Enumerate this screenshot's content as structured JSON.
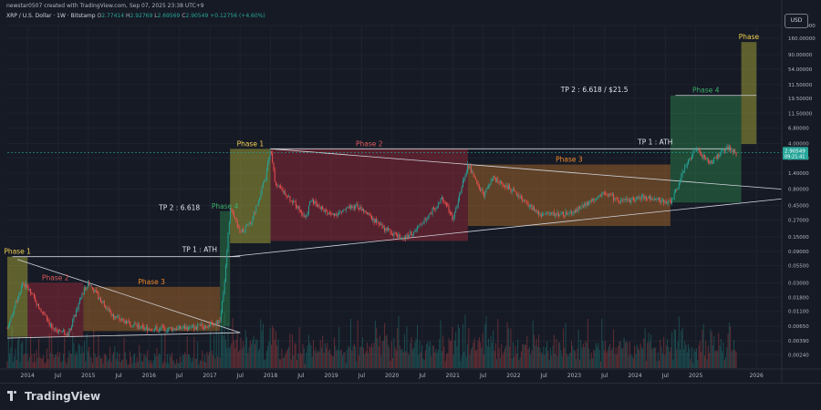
{
  "header": {
    "credit": "newstar0507 created with TradingView.com, Sep 07, 2025 23:38 UTC+9"
  },
  "symbol": {
    "name": "XRP / U.S. Dollar · 1W · Bitstamp",
    "o_label": "O",
    "o_value": "2.77414",
    "h_label": "H",
    "h_value": "2.92769",
    "l_label": "L",
    "l_value": "2.69569",
    "c_label": "C",
    "c_value": "2.90549",
    "change": "+0.12756 (+4.60%)"
  },
  "currency_button": "USD",
  "price_tag": {
    "price": "2.90549",
    "countdown": "09:21:41"
  },
  "logo_text": "TradingView",
  "colors": {
    "background": "#161a25",
    "up": "#26a69a",
    "down": "#ef5350",
    "phase1": "#b5b53a",
    "phase2": "#a52a3a",
    "phase3": "#b8722a",
    "phase4": "#2d8a4e",
    "label_phase1": "#f0d050",
    "label_phase2": "#e05a5a",
    "label_phase3": "#f08a2a",
    "label_phase4": "#3cb06a"
  },
  "chart_data": {
    "type": "candlestick",
    "scale": "log",
    "ylim": [
      0.0015,
      250
    ],
    "y_ticks": [
      "250.00000",
      "160.00000",
      "90.00000",
      "54.00000",
      "31.50000",
      "19.50000",
      "11.50000",
      "6.80000",
      "4.00000",
      "2.40000",
      "1.40000",
      "0.80000",
      "0.45000",
      "0.27000",
      "0.15000",
      "0.09000",
      "0.05500",
      "0.03000",
      "0.01800",
      "0.01100",
      "0.00650",
      "0.00390",
      "0.00240"
    ],
    "x_ticks": [
      "2014",
      "Jul",
      "2015",
      "Jul",
      "2016",
      "Jul",
      "2017",
      "Jul",
      "2018",
      "Jul",
      "2019",
      "Jul",
      "2020",
      "Jul",
      "2021",
      "Jul",
      "2022",
      "Jul",
      "2023",
      "Jul",
      "2024",
      "Jul",
      "2025",
      "Jul",
      "2026"
    ],
    "x_range": [
      "2013-09",
      "2026-06"
    ],
    "price_path": [
      [
        "2013-09",
        0.006
      ],
      [
        "2013-12",
        0.03
      ],
      [
        "2014-01",
        0.025
      ],
      [
        "2014-06",
        0.006
      ],
      [
        "2014-09",
        0.005
      ],
      [
        "2014-12",
        0.022
      ],
      [
        "2015-01",
        0.03
      ],
      [
        "2015-06",
        0.009
      ],
      [
        "2015-12",
        0.006
      ],
      [
        "2016-06",
        0.006
      ],
      [
        "2016-12",
        0.0065
      ],
      [
        "2017-03",
        0.008
      ],
      [
        "2017-04",
        0.035
      ],
      [
        "2017-05",
        0.4
      ],
      [
        "2017-07",
        0.18
      ],
      [
        "2017-09",
        0.23
      ],
      [
        "2017-12",
        1.2
      ],
      [
        "2018-01",
        3.3
      ],
      [
        "2018-02",
        0.9
      ],
      [
        "2018-04",
        0.7
      ],
      [
        "2018-08",
        0.3
      ],
      [
        "2018-09",
        0.55
      ],
      [
        "2019-01",
        0.32
      ],
      [
        "2019-06",
        0.45
      ],
      [
        "2019-12",
        0.19
      ],
      [
        "2020-03",
        0.14
      ],
      [
        "2020-06",
        0.2
      ],
      [
        "2020-11",
        0.6
      ],
      [
        "2021-01",
        0.28
      ],
      [
        "2021-04",
        1.9
      ],
      [
        "2021-07",
        0.65
      ],
      [
        "2021-09",
        1.2
      ],
      [
        "2022-01",
        0.75
      ],
      [
        "2022-06",
        0.33
      ],
      [
        "2022-12",
        0.34
      ],
      [
        "2023-03",
        0.45
      ],
      [
        "2023-07",
        0.75
      ],
      [
        "2023-10",
        0.5
      ],
      [
        "2024-03",
        0.62
      ],
      [
        "2024-08",
        0.5
      ],
      [
        "2024-11",
        1.8
      ],
      [
        "2024-12",
        2.4
      ],
      [
        "2025-01",
        3.2
      ],
      [
        "2025-04",
        2.0
      ],
      [
        "2025-07",
        3.5
      ],
      [
        "2025-09",
        2.9
      ]
    ],
    "phases": [
      {
        "label": "Phase 1",
        "x0": "2013-09",
        "x1": "2014-01",
        "y0": 0.0045,
        "y1": 0.075,
        "color": "phase1"
      },
      {
        "label": "Phase 2",
        "x0": "2014-01",
        "x1": "2014-12",
        "y0": 0.0045,
        "y1": 0.03,
        "color": "phase2"
      },
      {
        "label": "Phase 3",
        "x0": "2014-12",
        "x1": "2017-03",
        "y0": 0.0055,
        "y1": 0.026,
        "color": "phase3"
      },
      {
        "label": "Phase 4",
        "x0": "2017-03",
        "x1": "2017-05",
        "y0": 0.0065,
        "y1": 0.37,
        "color": "phase4"
      },
      {
        "label": "Phase 1",
        "x0": "2017-05",
        "x1": "2018-01",
        "y0": 0.12,
        "y1": 3.3,
        "color": "phase1"
      },
      {
        "label": "Phase 2",
        "x0": "2018-01",
        "x1": "2021-04",
        "y0": 0.13,
        "y1": 3.3,
        "color": "phase2"
      },
      {
        "label": "Phase 3",
        "x0": "2021-04",
        "x1": "2024-08",
        "y0": 0.22,
        "y1": 1.9,
        "color": "phase3"
      },
      {
        "label": "Phase 4",
        "x0": "2024-08",
        "x1": "2025-10",
        "y0": 0.5,
        "y1": 21.5,
        "color": "phase4"
      },
      {
        "label": "Phase",
        "x0": "2025-10",
        "x1": "2026-01",
        "y0": 3.9,
        "y1": 140,
        "color": "phase1"
      }
    ],
    "trend_lines": [
      {
        "from": [
          "2013-10",
          0.075
        ],
        "to": [
          "2017-07",
          0.075
        ]
      },
      {
        "from": [
          "2013-11",
          0.068
        ],
        "to": [
          "2017-07",
          0.0052
        ]
      },
      {
        "from": [
          "2013-09",
          0.0043
        ],
        "to": [
          "2017-07",
          0.0052
        ]
      },
      {
        "from": [
          "2018-01",
          3.3
        ],
        "to": [
          "2025-08",
          3.3
        ]
      },
      {
        "from": [
          "2018-01",
          3.3
        ],
        "to": [
          "2026-06",
          0.8
        ]
      },
      {
        "from": [
          "2017-05",
          0.075
        ],
        "to": [
          "2026-06",
          0.57
        ]
      },
      {
        "from": [
          "2024-09",
          21.5
        ],
        "to": [
          "2026-01",
          21.5
        ]
      }
    ],
    "annotations": [
      {
        "text": "TP 1 : ATH",
        "x": "2016-11",
        "y": 0.08
      },
      {
        "text": "TP 2 : 6.618",
        "x": "2016-07",
        "y": 0.35
      },
      {
        "text": "TP 1 : ATH",
        "x": "2024-05",
        "y": 3.5
      },
      {
        "text": "TP 2 : 6.618 / $21.5",
        "x": "2023-05",
        "y": 22
      }
    ],
    "current_price": 2.90549
  }
}
